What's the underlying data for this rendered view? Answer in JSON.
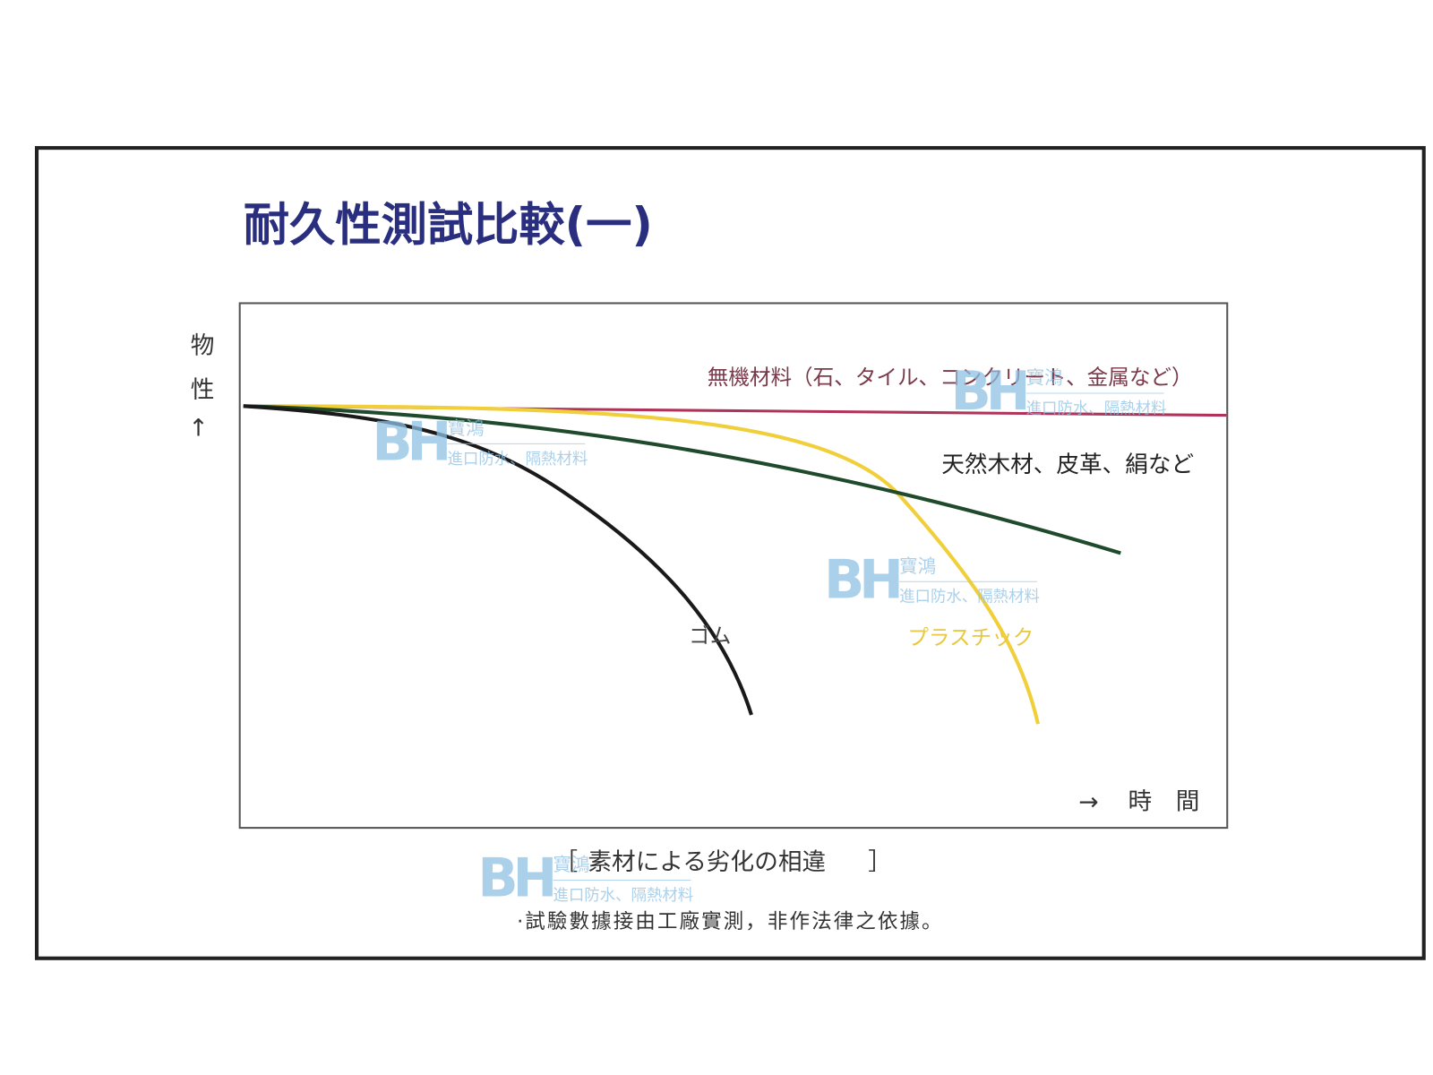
{
  "header": {
    "title": "耐久性測試比較(一)"
  },
  "diagram": {
    "y_axis_label": "物性",
    "x_axis_label": "時間",
    "curves": [
      {
        "label": "無機材料（石、タイル、コンクリート、金属など）"
      },
      {
        "label": "天然木材、皮革、絹など"
      },
      {
        "label": "ゴム"
      },
      {
        "label": "プラスチック"
      }
    ],
    "caption": "素材による劣化の相違"
  },
  "watermark": {
    "logo": "BH",
    "name": "寶鴻",
    "tagline": "進口防水、隔熱材料"
  },
  "footer": {
    "note": "·試驗數據接由工廠實測，非作法律之依據。"
  }
}
